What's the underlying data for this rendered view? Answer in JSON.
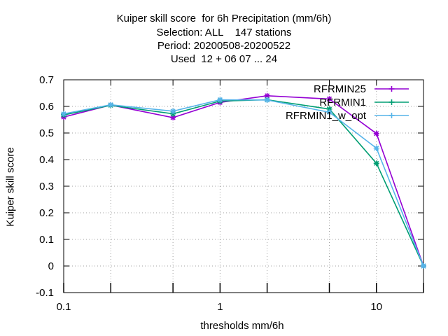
{
  "title_lines": [
    "Kuiper skill score  for 6h Precipitation (mm/6h)",
    "Selection: ALL    147 stations",
    "Period: 20200508-20200522",
    "Used  12 + 06 07 ... 24"
  ],
  "chart_data": {
    "type": "line",
    "xlabel": "thresholds mm/6h",
    "ylabel": "Kuiper skill score",
    "xscale": "log",
    "xlim": [
      0.1,
      20
    ],
    "ylim": [
      -0.1,
      0.7
    ],
    "x_ticks": [
      0.1,
      1,
      10
    ],
    "x_tick_labels": [
      "0.1",
      "1",
      "10"
    ],
    "y_ticks": [
      -0.1,
      0,
      0.1,
      0.2,
      0.3,
      0.4,
      0.5,
      0.6,
      0.7
    ],
    "y_tick_labels": [
      "-0.1",
      "0",
      "0.1",
      "0.2",
      "0.3",
      "0.4",
      "0.5",
      "0.6",
      "0.7"
    ],
    "grid": true,
    "legend_position": "top-right",
    "x": [
      0.1,
      0.2,
      0.5,
      1,
      2,
      5,
      10,
      20
    ],
    "series": [
      {
        "name": "RFRMIN25",
        "color": "#9400d3",
        "values": [
          0.56,
          0.605,
          0.558,
          0.615,
          0.64,
          0.628,
          0.498,
          0.0
        ]
      },
      {
        "name": "RFRMIN1",
        "color": "#009e73",
        "values": [
          0.568,
          0.604,
          0.572,
          0.62,
          0.625,
          0.59,
          0.386,
          0.0
        ]
      },
      {
        "name": "RFRMIN1_w_opt",
        "color": "#56b4e9",
        "values": [
          0.572,
          0.606,
          0.582,
          0.625,
          0.624,
          0.578,
          0.443,
          0.0
        ]
      }
    ]
  }
}
